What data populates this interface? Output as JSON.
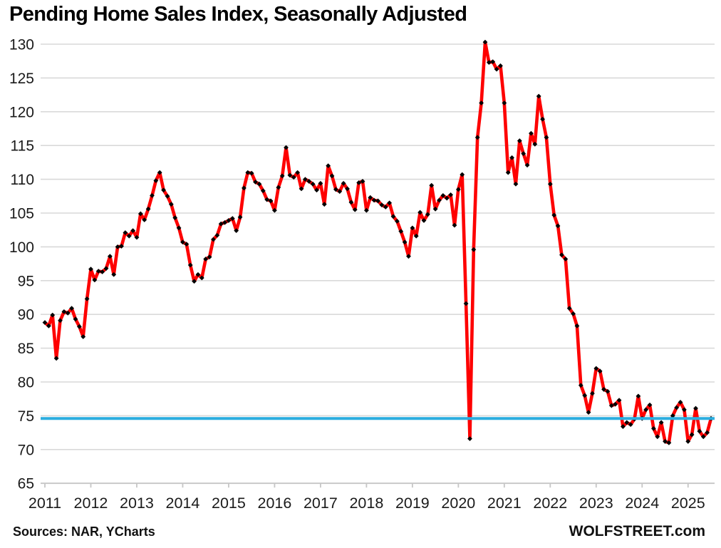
{
  "title": "Pending Home Sales Index, Seasonally Adjusted",
  "footer": {
    "sources": "Sources: NAR, YCharts",
    "site": "WOLFSTREET.com"
  },
  "colors": {
    "line": "#fe0000",
    "marker": "#000000",
    "reference_line": "#2badе0",
    "reference_line_hex": "#2baddf",
    "grid": "#d9d9d9",
    "axis": "#c6c6c6",
    "text": "#1a1a1a"
  },
  "chart_data": {
    "type": "line",
    "title": "Pending Home Sales Index, Seasonally Adjusted",
    "xlabel": "",
    "ylabel": "",
    "frequency": "monthly",
    "start": "2011-01",
    "end": "2025-07",
    "x_tick_labels": [
      "2011",
      "2012",
      "2013",
      "2014",
      "2015",
      "2016",
      "2017",
      "2018",
      "2019",
      "2020",
      "2021",
      "2022",
      "2023",
      "2024",
      "2025"
    ],
    "y_ticks": [
      65,
      70,
      75,
      80,
      85,
      90,
      95,
      100,
      105,
      110,
      115,
      120,
      125,
      130
    ],
    "ylim": [
      65,
      130
    ],
    "grid": "horizontal",
    "legend": "none",
    "reference_line_value": 74.6,
    "marker": "diamond",
    "series": [
      {
        "name": "Pending Home Sales Index (seasonally adjusted)",
        "values": [
          88.8,
          88.3,
          89.9,
          83.5,
          89.1,
          90.4,
          90.2,
          90.9,
          89.3,
          88.2,
          86.7,
          92.3,
          96.7,
          95.1,
          96.4,
          96.3,
          96.8,
          98.6,
          95.9,
          100.0,
          100.1,
          102.1,
          101.6,
          102.4,
          101.4,
          104.9,
          104.0,
          105.6,
          107.6,
          109.8,
          111.0,
          108.4,
          107.5,
          106.3,
          104.3,
          102.8,
          100.7,
          100.4,
          97.3,
          94.9,
          95.9,
          95.4,
          98.2,
          98.5,
          101.1,
          101.7,
          103.4,
          103.6,
          103.9,
          104.2,
          102.4,
          104.4,
          108.7,
          111.0,
          110.9,
          109.6,
          109.3,
          108.3,
          107.0,
          106.8,
          105.4,
          108.8,
          110.5,
          114.7,
          110.6,
          110.3,
          111.0,
          108.6,
          110.0,
          109.7,
          109.3,
          108.4,
          109.4,
          106.3,
          112.0,
          110.5,
          108.5,
          108.2,
          109.4,
          108.6,
          106.6,
          105.5,
          109.5,
          109.7,
          105.4,
          107.3,
          106.9,
          106.8,
          106.2,
          105.9,
          106.5,
          104.5,
          103.8,
          102.3,
          100.7,
          98.6,
          102.8,
          101.6,
          105.1,
          103.9,
          104.8,
          109.1,
          105.6,
          106.9,
          107.6,
          107.2,
          107.7,
          103.2,
          108.5,
          110.7,
          91.6,
          71.6,
          99.6,
          116.2,
          121.3,
          130.3,
          127.3,
          127.4,
          126.3,
          126.8,
          121.3,
          111.0,
          113.2,
          109.3,
          115.7,
          113.8,
          112.1,
          116.8,
          115.2,
          122.3,
          118.9,
          116.2,
          109.3,
          104.7,
          103.1,
          98.8,
          98.2,
          90.9,
          90.1,
          88.3,
          79.5,
          78.0,
          75.5,
          78.3,
          82.0,
          81.6,
          78.9,
          78.6,
          76.5,
          76.7,
          77.3,
          73.4,
          74.0,
          73.7,
          74.5,
          77.9,
          74.6,
          75.9,
          76.6,
          73.1,
          71.9,
          74.0,
          71.2,
          71.0,
          75.0,
          76.2,
          77.0,
          75.9,
          71.2,
          72.2,
          76.1,
          72.7,
          71.9,
          72.5,
          74.6
        ]
      }
    ]
  }
}
